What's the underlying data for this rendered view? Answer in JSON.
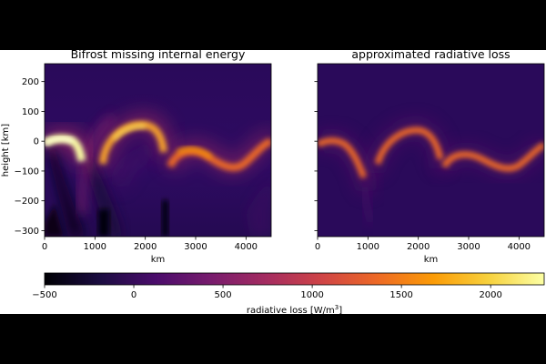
{
  "figure": {
    "background": "#ffffff",
    "letterbox": "#000000"
  },
  "chart_data": [
    {
      "type": "heatmap",
      "title": "Bifrost missing internal energy",
      "xlabel": "km",
      "ylabel": "height [km]",
      "xlim": [
        0,
        4500
      ],
      "ylim": [
        -320,
        260
      ],
      "xticks": [
        0,
        1000,
        2000,
        3000,
        4000
      ],
      "yticks": [
        200,
        100,
        0,
        -100,
        -200,
        -300
      ],
      "colormap": "inferno",
      "features": [
        {
          "desc": "bright arc left",
          "x": [
            0,
            650
          ],
          "peak_y": -15,
          "value": 2200
        },
        {
          "desc": "arc center",
          "x": [
            1250,
            2500
          ],
          "peak_y": 40,
          "value": 1300
        },
        {
          "desc": "arc right",
          "x": [
            2600,
            4500
          ],
          "trough_y": -100,
          "value": 1000
        },
        {
          "desc": "dark columns",
          "x": [
            1200,
            2400
          ],
          "y_range": [
            -320,
            -200
          ],
          "value": -500
        }
      ]
    },
    {
      "type": "heatmap",
      "title": "approximated radiative loss",
      "xlabel": "km",
      "ylabel": "",
      "xlim": [
        0,
        4500
      ],
      "ylim": [
        -320,
        260
      ],
      "xticks": [
        0,
        1000,
        2000,
        3000,
        4000
      ],
      "colormap": "inferno",
      "features": [
        {
          "desc": "arc left",
          "x": [
            0,
            900
          ],
          "peak_y": -20,
          "value": 1000
        },
        {
          "desc": "arc center",
          "x": [
            1000,
            2500
          ],
          "peak_y": 30,
          "value": 1000
        },
        {
          "desc": "arc right",
          "x": [
            2600,
            4500
          ],
          "trough_y": -100,
          "value": 1000
        }
      ]
    }
  ],
  "colorbar": {
    "label_prefix": "radiative loss [W/m",
    "label_sup": "3",
    "label_suffix": "]",
    "min": -500,
    "max": 2300,
    "ticks": [
      {
        "value": -500,
        "label": "−500"
      },
      {
        "value": 0,
        "label": "0"
      },
      {
        "value": 500,
        "label": "500"
      },
      {
        "value": 1000,
        "label": "1000"
      },
      {
        "value": 1500,
        "label": "1500"
      },
      {
        "value": 2000,
        "label": "2000"
      }
    ],
    "stops": [
      "#000004",
      "#1b0c41",
      "#4a0c6b",
      "#781c6d",
      "#a52c60",
      "#cf4446",
      "#ed6925",
      "#fb9b06",
      "#f7d13d",
      "#fcffa4"
    ]
  }
}
